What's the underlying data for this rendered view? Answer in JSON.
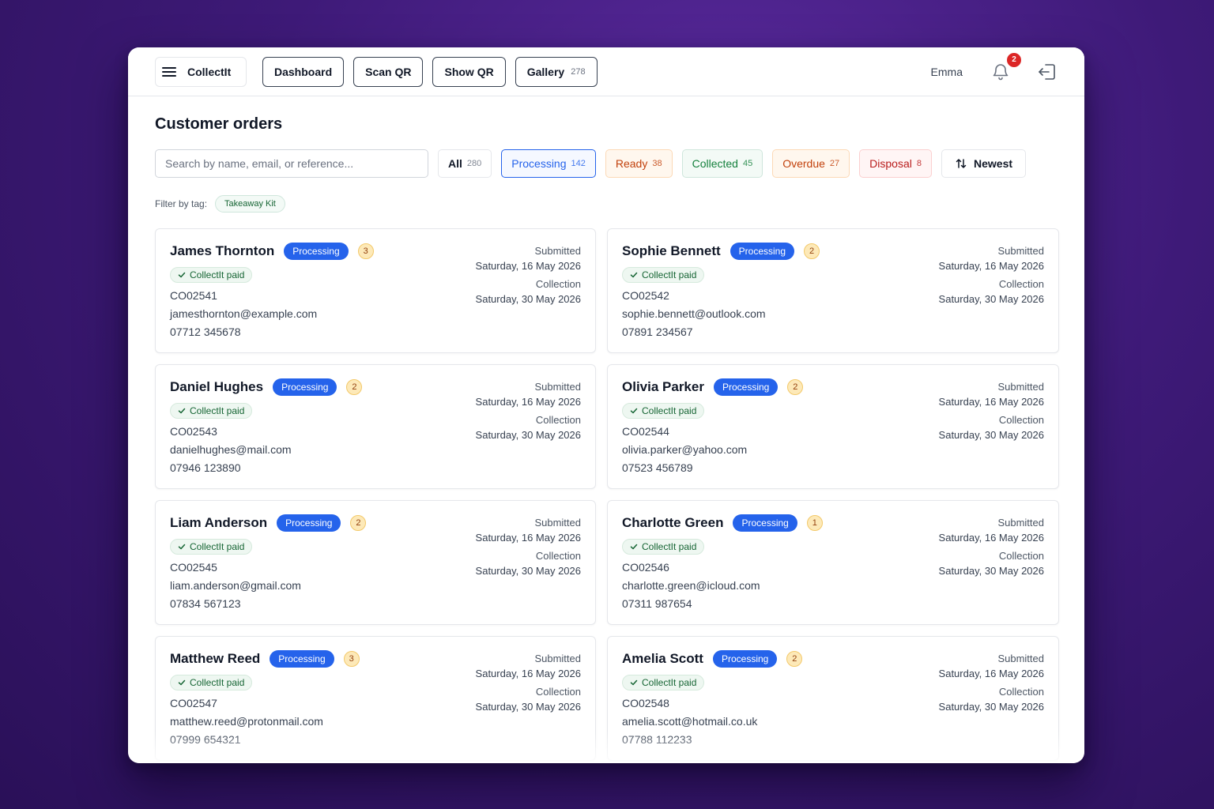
{
  "app": {
    "name": "CollectIt",
    "user": "Emma",
    "notifications": "2"
  },
  "nav": [
    {
      "label": "Dashboard",
      "count": ""
    },
    {
      "label": "Scan QR",
      "count": ""
    },
    {
      "label": "Show QR",
      "count": ""
    },
    {
      "label": "Gallery",
      "count": "278"
    }
  ],
  "page_title": "Customer orders",
  "search": {
    "placeholder": "Search by name, email, or reference...",
    "value": ""
  },
  "filters": [
    {
      "label": "All",
      "count": "280",
      "style": "all"
    },
    {
      "label": "Processing",
      "count": "142",
      "style": "processing",
      "selected": true
    },
    {
      "label": "Ready",
      "count": "38",
      "style": "ready"
    },
    {
      "label": "Collected",
      "count": "45",
      "style": "collected"
    },
    {
      "label": "Overdue",
      "count": "27",
      "style": "overdue"
    },
    {
      "label": "Disposal",
      "count": "8",
      "style": "disposal"
    }
  ],
  "sort": {
    "label": "Newest"
  },
  "tag_filter": {
    "label": "Filter by tag:",
    "tag": "Takeaway Kit"
  },
  "card_labels": {
    "submitted": "Submitted",
    "collection": "Collection",
    "paid": "CollectIt paid"
  },
  "orders": [
    {
      "name": "James Thornton",
      "status": "Processing",
      "items": "3",
      "ref": "CO02541",
      "email": "jamesthornton@example.com",
      "phone": "07712 345678",
      "submitted": "Saturday, 16 May 2026",
      "collection": "Saturday, 30 May 2026"
    },
    {
      "name": "Sophie Bennett",
      "status": "Processing",
      "items": "2",
      "ref": "CO02542",
      "email": "sophie.bennett@outlook.com",
      "phone": "07891 234567",
      "submitted": "Saturday, 16 May 2026",
      "collection": "Saturday, 30 May 2026"
    },
    {
      "name": "Daniel Hughes",
      "status": "Processing",
      "items": "2",
      "ref": "CO02543",
      "email": "danielhughes@mail.com",
      "phone": "07946 123890",
      "submitted": "Saturday, 16 May 2026",
      "collection": "Saturday, 30 May 2026"
    },
    {
      "name": "Olivia Parker",
      "status": "Processing",
      "items": "2",
      "ref": "CO02544",
      "email": "olivia.parker@yahoo.com",
      "phone": "07523 456789",
      "submitted": "Saturday, 16 May 2026",
      "collection": "Saturday, 30 May 2026"
    },
    {
      "name": "Liam Anderson",
      "status": "Processing",
      "items": "2",
      "ref": "CO02545",
      "email": "liam.anderson@gmail.com",
      "phone": "07834 567123",
      "submitted": "Saturday, 16 May 2026",
      "collection": "Saturday, 30 May 2026"
    },
    {
      "name": "Charlotte Green",
      "status": "Processing",
      "items": "1",
      "ref": "CO02546",
      "email": "charlotte.green@icloud.com",
      "phone": "07311 987654",
      "submitted": "Saturday, 16 May 2026",
      "collection": "Saturday, 30 May 2026"
    },
    {
      "name": "Matthew Reed",
      "status": "Processing",
      "items": "3",
      "ref": "CO02547",
      "email": "matthew.reed@protonmail.com",
      "phone": "07999 654321",
      "submitted": "Saturday, 16 May 2026",
      "collection": "Saturday, 30 May 2026"
    },
    {
      "name": "Amelia Scott",
      "status": "Processing",
      "items": "2",
      "ref": "CO02548",
      "email": "amelia.scott@hotmail.co.uk",
      "phone": "07788 112233",
      "submitted": "Saturday, 16 May 2026",
      "collection": "Saturday, 30 May 2026"
    }
  ],
  "icons": {
    "menu": "hamburger-icon",
    "bell": "bell-icon",
    "logout": "logout-icon",
    "sort": "sort-arrows-icon",
    "check": "check-icon"
  },
  "colors": {
    "accent": "#2563eb",
    "background": "#3e1a78",
    "badge_red": "#dc2626",
    "paid_green": "#166534"
  }
}
